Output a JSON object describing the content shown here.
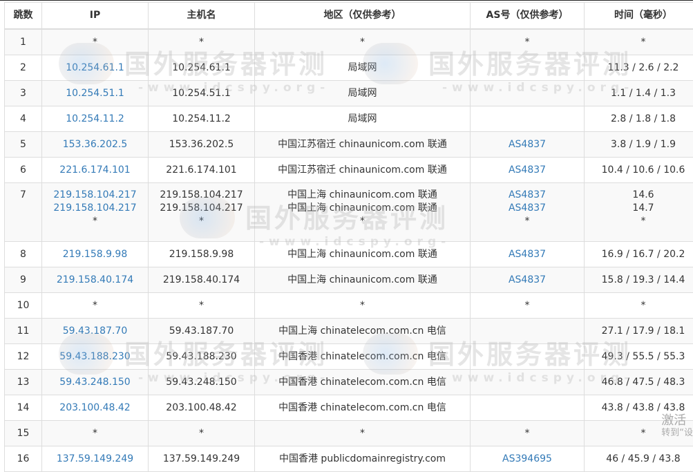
{
  "columns": [
    "跳数",
    "IP",
    "主机名",
    "地区（仅供参考）",
    "AS号（仅供参考）",
    "时间（毫秒）"
  ],
  "rows": [
    {
      "hop": "1",
      "ip": [
        "*"
      ],
      "host": [
        "*"
      ],
      "region": [
        "*"
      ],
      "as": [
        "*"
      ],
      "time": [
        "*"
      ]
    },
    {
      "hop": "2",
      "ip": [
        "10.254.61.1"
      ],
      "host": [
        "10.254.61.1"
      ],
      "region": [
        "局域网"
      ],
      "as": [
        ""
      ],
      "time": [
        "11.3 / 2.6 / 2.2"
      ]
    },
    {
      "hop": "3",
      "ip": [
        "10.254.51.1"
      ],
      "host": [
        "10.254.51.1"
      ],
      "region": [
        "局域网"
      ],
      "as": [
        ""
      ],
      "time": [
        "1.1 / 1.4 / 1.3"
      ]
    },
    {
      "hop": "4",
      "ip": [
        "10.254.11.2"
      ],
      "host": [
        "10.254.11.2"
      ],
      "region": [
        "局域网"
      ],
      "as": [
        ""
      ],
      "time": [
        "2.8 / 1.8 / 1.8"
      ]
    },
    {
      "hop": "5",
      "ip": [
        "153.36.202.5"
      ],
      "host": [
        "153.36.202.5"
      ],
      "region": [
        "中国江苏宿迁 chinaunicom.com 联通"
      ],
      "as": [
        "AS4837"
      ],
      "time": [
        "3.8 / 1.9 / 1.9"
      ]
    },
    {
      "hop": "6",
      "ip": [
        "221.6.174.101"
      ],
      "host": [
        "221.6.174.101"
      ],
      "region": [
        "中国江苏宿迁 chinaunicom.com 联通"
      ],
      "as": [
        "AS4837"
      ],
      "time": [
        "10.4 / 10.6 / 10.6"
      ]
    },
    {
      "hop": "7",
      "ip": [
        "219.158.104.217",
        "219.158.104.217",
        "*"
      ],
      "host": [
        "219.158.104.217",
        "219.158.104.217",
        "*"
      ],
      "region": [
        "中国上海 chinaunicom.com 联通",
        "中国上海 chinaunicom.com 联通",
        "*"
      ],
      "as": [
        "AS4837",
        "AS4837",
        "*"
      ],
      "time": [
        "14.6",
        "14.7",
        "*"
      ]
    },
    {
      "hop": "8",
      "ip": [
        "219.158.9.98"
      ],
      "host": [
        "219.158.9.98"
      ],
      "region": [
        "中国上海 chinaunicom.com 联通"
      ],
      "as": [
        "AS4837"
      ],
      "time": [
        "16.9 / 16.7 / 20.2"
      ]
    },
    {
      "hop": "9",
      "ip": [
        "219.158.40.174"
      ],
      "host": [
        "219.158.40.174"
      ],
      "region": [
        "中国上海 chinaunicom.com 联通"
      ],
      "as": [
        "AS4837"
      ],
      "time": [
        "15.8 / 19.3 / 14.4"
      ]
    },
    {
      "hop": "10",
      "ip": [
        "*"
      ],
      "host": [
        "*"
      ],
      "region": [
        "*"
      ],
      "as": [
        "*"
      ],
      "time": [
        "*"
      ]
    },
    {
      "hop": "11",
      "ip": [
        "59.43.187.70"
      ],
      "host": [
        "59.43.187.70"
      ],
      "region": [
        "中国上海 chinatelecom.com.cn 电信"
      ],
      "as": [
        ""
      ],
      "time": [
        "27.1 / 17.9 / 18.1"
      ]
    },
    {
      "hop": "12",
      "ip": [
        "59.43.188.230"
      ],
      "host": [
        "59.43.188.230"
      ],
      "region": [
        "中国香港 chinatelecom.com.cn 电信"
      ],
      "as": [
        ""
      ],
      "time": [
        "49.3 / 55.5 / 55.3"
      ]
    },
    {
      "hop": "13",
      "ip": [
        "59.43.248.150"
      ],
      "host": [
        "59.43.248.150"
      ],
      "region": [
        "中国香港 chinatelecom.com.cn 电信"
      ],
      "as": [
        ""
      ],
      "time": [
        "46.8 / 47.5 / 48.3"
      ]
    },
    {
      "hop": "14",
      "ip": [
        "203.100.48.42"
      ],
      "host": [
        "203.100.48.42"
      ],
      "region": [
        "中国香港 chinatelecom.com.cn 电信"
      ],
      "as": [
        ""
      ],
      "time": [
        "43.8 / 43.8 / 43.8"
      ]
    },
    {
      "hop": "15",
      "ip": [
        "*"
      ],
      "host": [
        "*"
      ],
      "region": [
        "*"
      ],
      "as": [
        "*"
      ],
      "time": [
        "*"
      ]
    },
    {
      "hop": "16",
      "ip": [
        "137.59.149.249"
      ],
      "host": [
        "137.59.149.249"
      ],
      "region": [
        "中国香港 publicdomainregistry.com"
      ],
      "as": [
        "AS394695"
      ],
      "time": [
        "46 / 45.9 / 43.8"
      ]
    }
  ],
  "watermark": {
    "title": "国外服务器评测",
    "url": "-www.idcspy.org-"
  },
  "activation": {
    "line1": "激活",
    "line2": "转到“设"
  },
  "colors": {
    "link": "#337ab7",
    "text": "#333333",
    "stripe": "#f9f9f9",
    "border": "#dddddd"
  }
}
